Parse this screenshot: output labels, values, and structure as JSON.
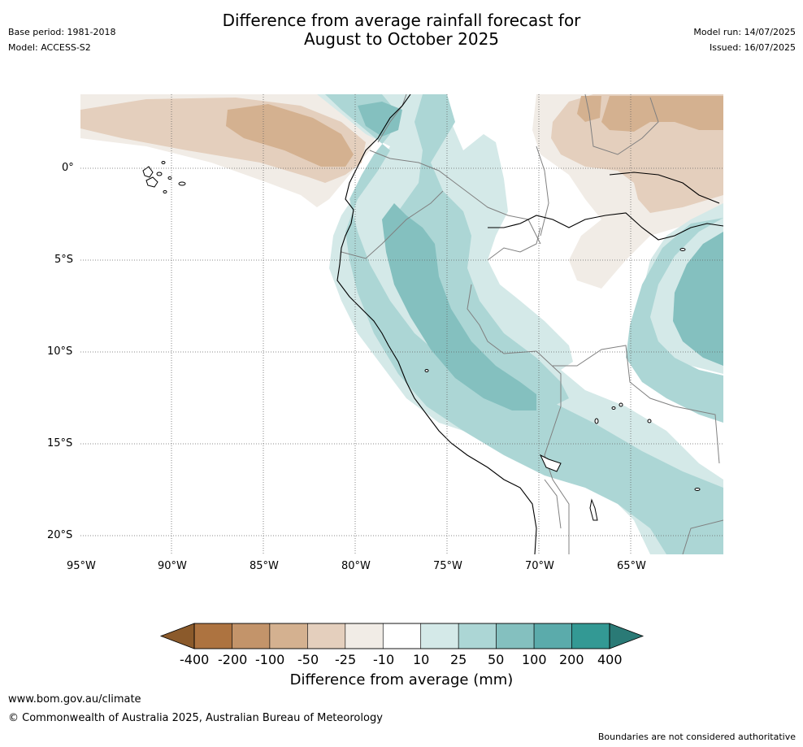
{
  "header": {
    "title_line1": "Difference from average rainfall forecast for",
    "title_line2": "August to October 2025",
    "base_period": "Base period: 1981-2018",
    "model": "Model: ACCESS-S2",
    "model_run": "Model run: 14/07/2025",
    "issued": "Issued: 16/07/2025"
  },
  "map": {
    "lat_labels": [
      "0°",
      "5°S",
      "10°S",
      "15°S",
      "20°S"
    ],
    "lon_labels": [
      "95°W",
      "90°W",
      "85°W",
      "80°W",
      "75°W",
      "70°W",
      "65°W"
    ],
    "extent": {
      "lon_min": -95,
      "lon_max": -60,
      "lat_min": -21,
      "lat_max": 4
    },
    "colors": {
      "minus_400": "#8b5a2b",
      "minus_200": "#ad7340",
      "minus_100": "#c3946a",
      "minus_50": "#d4b190",
      "minus_25": "#e4cfbd",
      "minus_10": "#f1ece6",
      "neutral": "#ffffff",
      "plus_10": "#d4e9e8",
      "plus_25": "#acd6d5",
      "plus_50": "#84c0bf",
      "plus_100": "#5babab",
      "plus_200": "#339994",
      "plus_400": "#2a7a76"
    }
  },
  "colorbar": {
    "labels": [
      "-400",
      "-200",
      "-100",
      "-50",
      "-25",
      "-10",
      "10",
      "25",
      "50",
      "100",
      "200",
      "400"
    ],
    "bin_colors": [
      "#ad7340",
      "#c3946a",
      "#d4b190",
      "#e4cfbd",
      "#f1ece6",
      "#ffffff",
      "#d4e9e8",
      "#acd6d5",
      "#84c0bf",
      "#5babab",
      "#339994"
    ],
    "low_extend_color": "#8b5a2b",
    "high_extend_color": "#2a7a76",
    "title": "Difference from average (mm)"
  },
  "footer": {
    "website": "www.bom.gov.au/climate",
    "copyright": "© Commonwealth of Australia 2025, Australian Bureau of Meteorology",
    "disclaimer": "Boundaries are not considered authoritative"
  }
}
